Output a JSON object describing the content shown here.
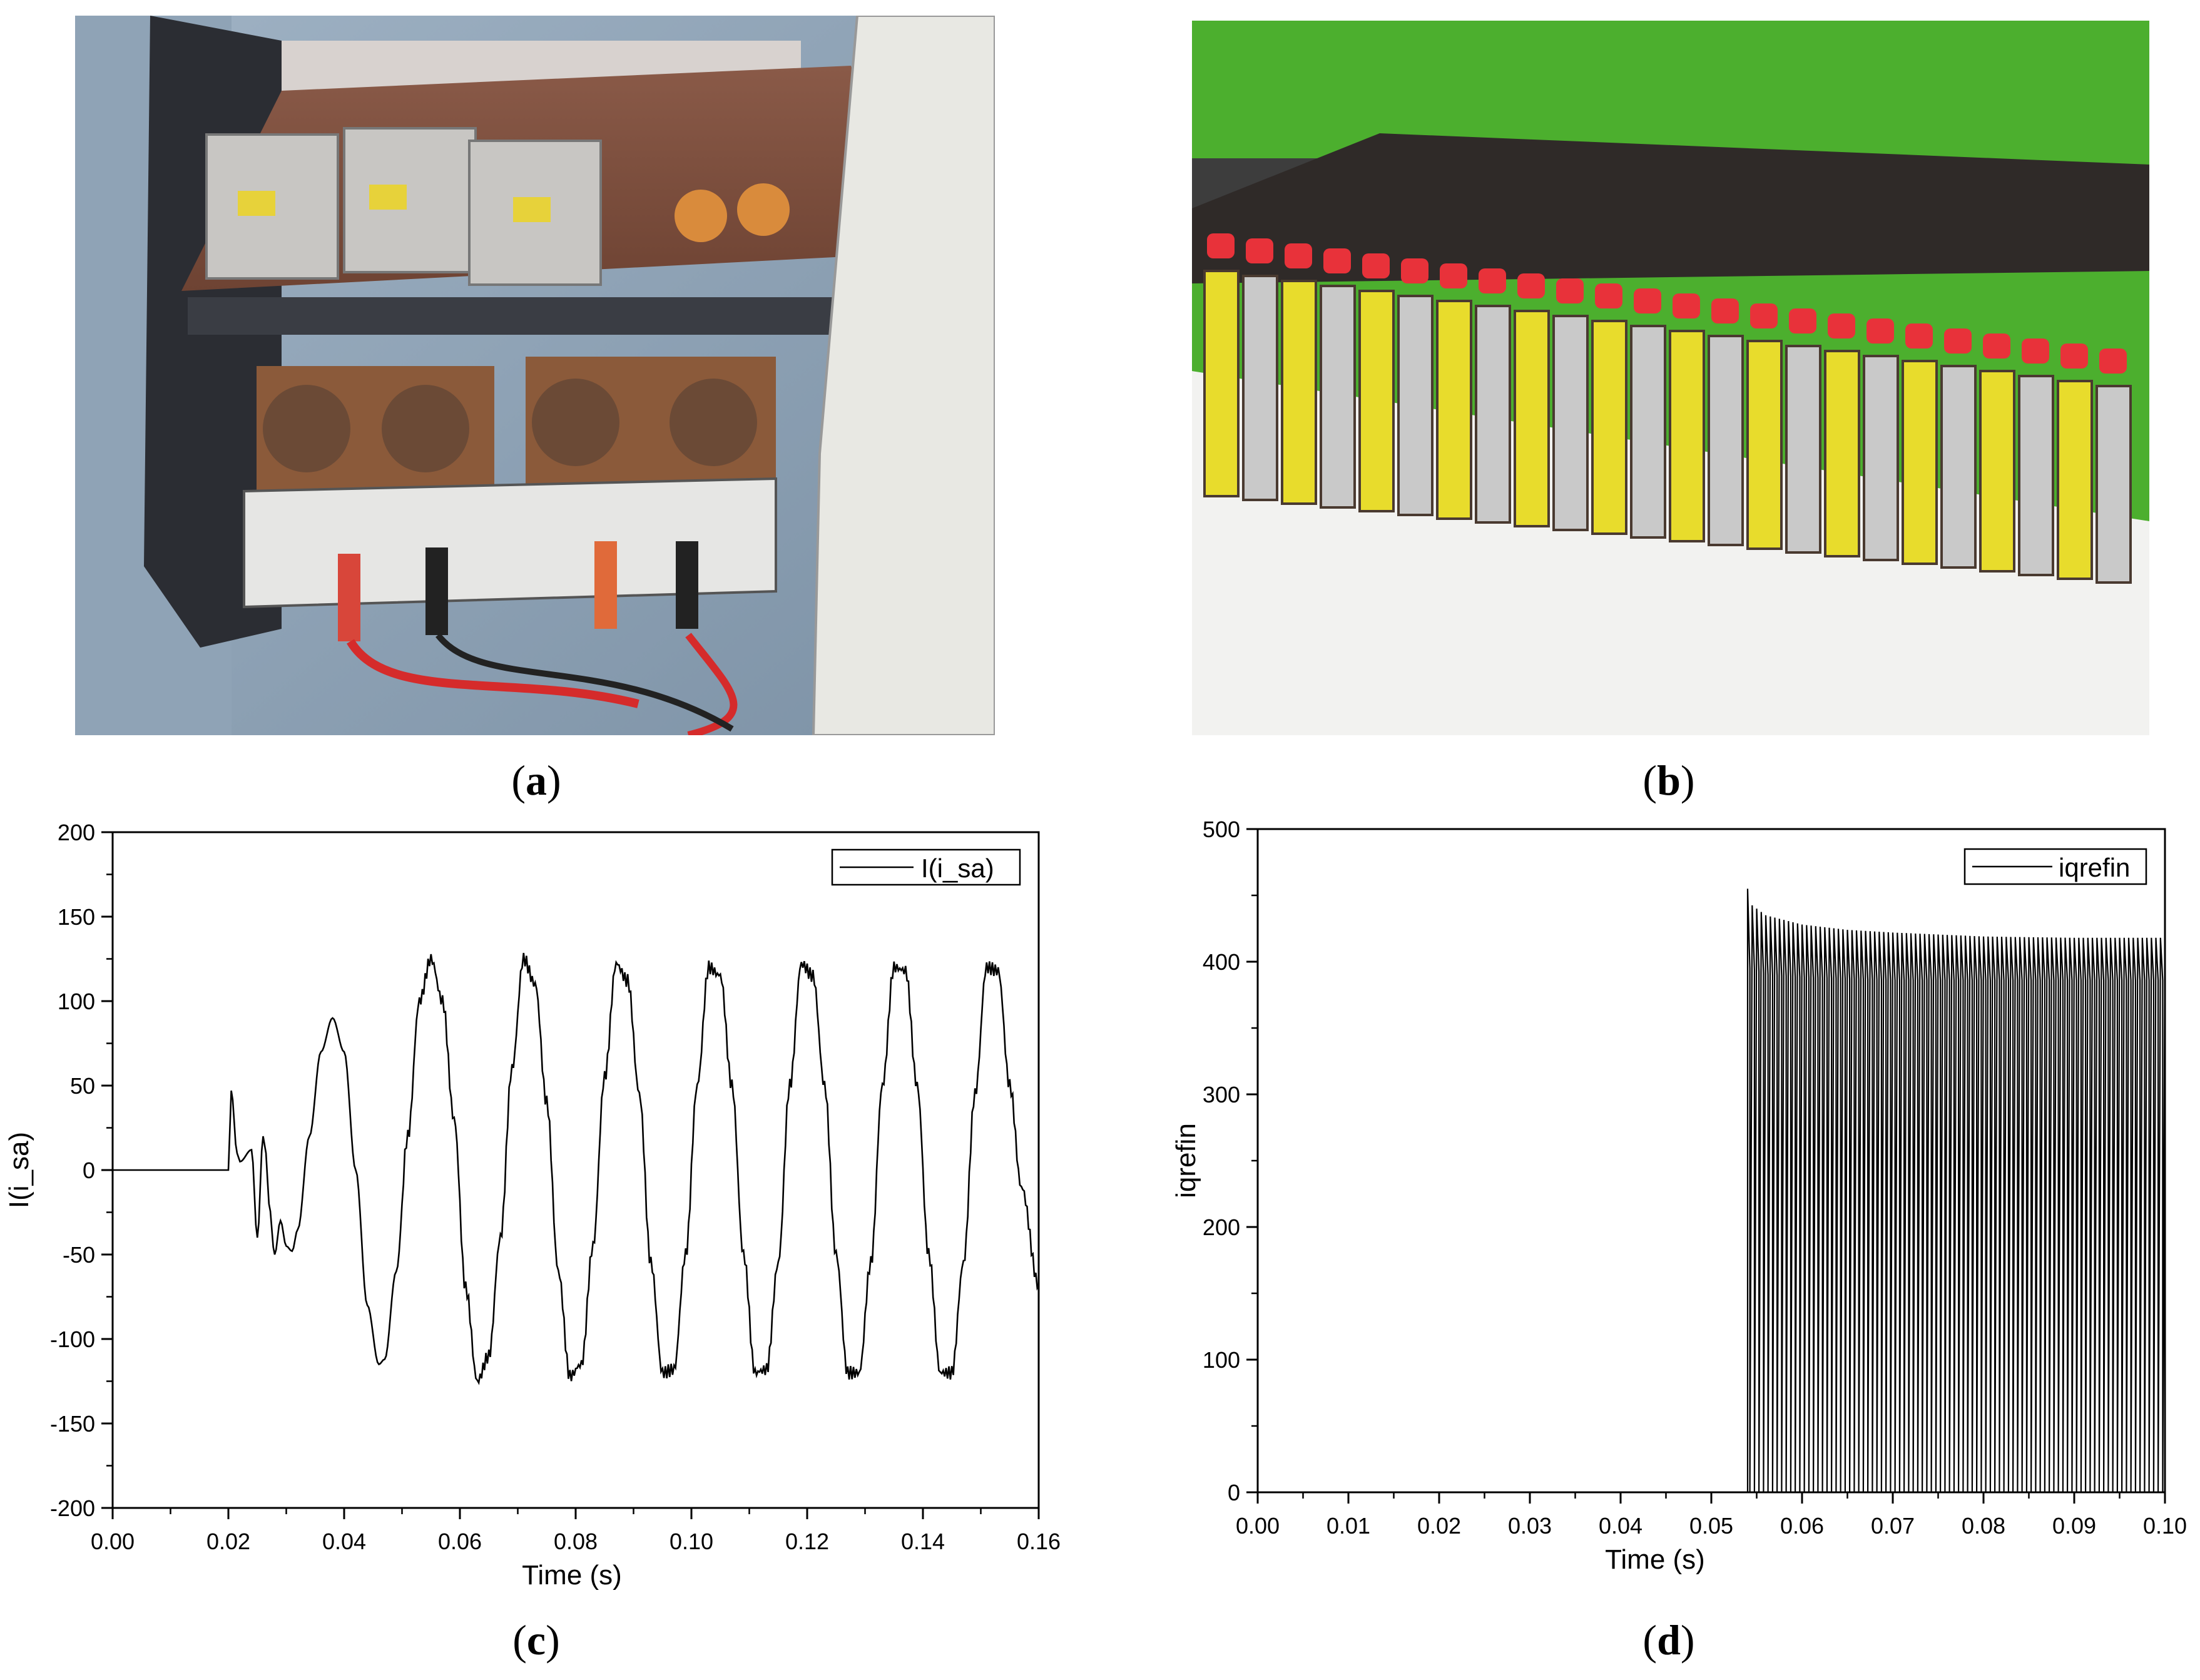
{
  "captions": {
    "a": "a",
    "b": "b",
    "c": "c",
    "d": "d"
  },
  "chart_data": [
    {
      "id": "c",
      "type": "line",
      "xlabel": "Time (s)",
      "ylabel": "I(i_sa)",
      "xlim": [
        0,
        0.16
      ],
      "ylim": [
        -200,
        200
      ],
      "xticks": [
        0.0,
        0.02,
        0.04,
        0.06,
        0.08,
        0.1,
        0.12,
        0.14,
        0.16
      ],
      "yticks": [
        -200,
        -150,
        -100,
        -50,
        0,
        50,
        100,
        150,
        200
      ],
      "legend": "top-right",
      "series": [
        {
          "name": "I(i_sa)",
          "x": [
            0.0,
            0.02,
            0.0205,
            0.0215,
            0.022,
            0.024,
            0.025,
            0.026,
            0.0265,
            0.027,
            0.028,
            0.029,
            0.03,
            0.031,
            0.032,
            0.034,
            0.036,
            0.038,
            0.04,
            0.042,
            0.044,
            0.046,
            0.047,
            0.049,
            0.051,
            0.053,
            0.055,
            0.057,
            0.059,
            0.061,
            0.063,
            0.065,
            0.067,
            0.069,
            0.071,
            0.073,
            0.075,
            0.077,
            0.079,
            0.081,
            0.083,
            0.085,
            0.087,
            0.089,
            0.091,
            0.093,
            0.095,
            0.097,
            0.099,
            0.101,
            0.103,
            0.105,
            0.107,
            0.109,
            0.111,
            0.113,
            0.115,
            0.117,
            0.119,
            0.121,
            0.123,
            0.125,
            0.127,
            0.129,
            0.131,
            0.133,
            0.135,
            0.137,
            0.139,
            0.141,
            0.143,
            0.145,
            0.147,
            0.149,
            0.151,
            0.153,
            0.155,
            0.157,
            0.16
          ],
          "values": [
            0,
            0,
            47,
            10,
            5,
            12,
            -40,
            20,
            10,
            -20,
            -50,
            -30,
            -45,
            -48,
            -35,
            20,
            70,
            90,
            70,
            0,
            -80,
            -115,
            -112,
            -60,
            20,
            100,
            125,
            100,
            30,
            -70,
            -125,
            -110,
            -40,
            60,
            125,
            110,
            40,
            -60,
            -122,
            -115,
            -45,
            55,
            122,
            112,
            45,
            -55,
            -120,
            -118,
            -50,
            50,
            120,
            115,
            50,
            -50,
            -120,
            -118,
            -55,
            50,
            122,
            115,
            50,
            -50,
            -120,
            -120,
            -55,
            50,
            120,
            118,
            50,
            -50,
            -120,
            -120,
            -55,
            45,
            120,
            118,
            50,
            -10,
            -68
          ]
        }
      ]
    },
    {
      "id": "d",
      "type": "line",
      "xlabel": "Time (s)",
      "ylabel": "iqrefin",
      "xlim": [
        0,
        0.1
      ],
      "ylim": [
        0,
        500
      ],
      "xticks": [
        0.0,
        0.01,
        0.02,
        0.03,
        0.04,
        0.05,
        0.06,
        0.07,
        0.08,
        0.09,
        0.1
      ],
      "yticks": [
        0,
        100,
        200,
        300,
        400,
        500
      ],
      "legend": "top-right",
      "series": [
        {
          "name": "iqrefin",
          "onset": 0.054,
          "end": 0.1,
          "spike_peak": 455,
          "envelope_x": [
            0.054,
            0.056,
            0.06,
            0.065,
            0.07,
            0.08,
            0.09,
            0.1
          ],
          "envelope_upper": [
            445,
            435,
            428,
            424,
            422,
            419,
            418,
            418
          ],
          "envelope_lower": [
            395,
            390,
            388,
            387,
            386,
            386,
            386,
            386
          ],
          "pulse_period": 0.0005
        }
      ]
    }
  ]
}
